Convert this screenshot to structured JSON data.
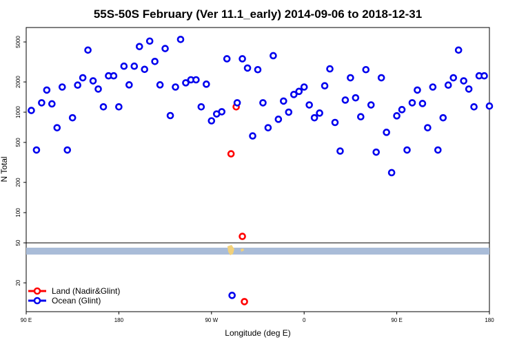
{
  "chart_data": {
    "type": "scatter",
    "title": "55S-50S February (Ver 11.1_early)   2014-09-06 to 2018-12-31",
    "xlabel": "Longitude (deg E)",
    "ylabel": "N Total",
    "x_unit": "degrees longitude, east of 90 E (0 = 90 E, 450 = 180)",
    "xlim": [
      0,
      450
    ],
    "x_ticks": [
      {
        "value": 0,
        "label": "90 E"
      },
      {
        "value": 90,
        "label": "180"
      },
      {
        "value": 180,
        "label": "90 W"
      },
      {
        "value": 270,
        "label": "0"
      },
      {
        "value": 360,
        "label": "90 E"
      },
      {
        "value": 450,
        "label": "180"
      }
    ],
    "y_scale": "log",
    "y_ticks": [
      {
        "value": 20,
        "label": "20"
      },
      {
        "value": 50,
        "label": "50"
      },
      {
        "value": 100,
        "label": "100"
      },
      {
        "value": 200,
        "label": "200"
      },
      {
        "value": 500,
        "label": "500"
      },
      {
        "value": 1000,
        "label": "1000"
      },
      {
        "value": 2000,
        "label": "2000"
      },
      {
        "value": 5000,
        "label": "5000"
      }
    ],
    "series": [
      {
        "name": "Land (Nadir&Glint)",
        "color": "#ff0000",
        "points": [
          [
            204,
            1130
          ],
          [
            199,
            385
          ],
          [
            210,
            58
          ],
          [
            212,
            13
          ]
        ]
      },
      {
        "name": "Ocean (Glint)",
        "color": "#0000ee",
        "points": [
          [
            5,
            1040
          ],
          [
            10,
            420
          ],
          [
            15,
            1240
          ],
          [
            20,
            1660
          ],
          [
            25,
            1210
          ],
          [
            30,
            700
          ],
          [
            35,
            1780
          ],
          [
            40,
            420
          ],
          [
            45,
            880
          ],
          [
            50,
            1860
          ],
          [
            55,
            2200
          ],
          [
            60,
            4150
          ],
          [
            65,
            2050
          ],
          [
            70,
            1700
          ],
          [
            75,
            1130
          ],
          [
            80,
            2300
          ],
          [
            85,
            2300
          ],
          [
            90,
            1130
          ],
          [
            95,
            2870
          ],
          [
            100,
            1870
          ],
          [
            105,
            2870
          ],
          [
            110,
            4500
          ],
          [
            115,
            2670
          ],
          [
            120,
            5100
          ],
          [
            125,
            3200
          ],
          [
            130,
            1870
          ],
          [
            135,
            4300
          ],
          [
            140,
            925
          ],
          [
            145,
            1780
          ],
          [
            150,
            5300
          ],
          [
            155,
            1960
          ],
          [
            160,
            2100
          ],
          [
            165,
            2100
          ],
          [
            170,
            1130
          ],
          [
            175,
            1900
          ],
          [
            180,
            820
          ],
          [
            185,
            960
          ],
          [
            190,
            1010
          ],
          [
            195,
            3400
          ],
          [
            200,
            15
          ],
          [
            205,
            1240
          ],
          [
            210,
            3400
          ],
          [
            215,
            2750
          ],
          [
            220,
            580
          ],
          [
            225,
            2650
          ],
          [
            230,
            1240
          ],
          [
            235,
            700
          ],
          [
            240,
            3650
          ],
          [
            245,
            850
          ],
          [
            250,
            1290
          ],
          [
            255,
            1000
          ],
          [
            260,
            1500
          ],
          [
            265,
            1610
          ],
          [
            270,
            1780
          ],
          [
            275,
            1180
          ],
          [
            280,
            880
          ],
          [
            285,
            980
          ],
          [
            290,
            1830
          ],
          [
            295,
            2700
          ],
          [
            300,
            790
          ],
          [
            305,
            410
          ],
          [
            310,
            1320
          ],
          [
            315,
            2200
          ],
          [
            320,
            1390
          ],
          [
            325,
            900
          ],
          [
            330,
            2650
          ],
          [
            335,
            1180
          ],
          [
            340,
            400
          ],
          [
            345,
            2200
          ],
          [
            350,
            630
          ],
          [
            355,
            250
          ],
          [
            360,
            920
          ],
          [
            365,
            1060
          ],
          [
            370,
            420
          ],
          [
            375,
            1240
          ],
          [
            380,
            1660
          ],
          [
            385,
            1220
          ],
          [
            390,
            700
          ],
          [
            395,
            1780
          ],
          [
            400,
            420
          ],
          [
            405,
            880
          ],
          [
            410,
            1860
          ],
          [
            415,
            2200
          ],
          [
            420,
            4150
          ],
          [
            425,
            2050
          ],
          [
            430,
            1700
          ],
          [
            435,
            1130
          ],
          [
            440,
            2300
          ],
          [
            445,
            2300
          ],
          [
            450,
            1150
          ]
        ]
      }
    ],
    "legend_position": "bottom-left",
    "grid": false
  }
}
